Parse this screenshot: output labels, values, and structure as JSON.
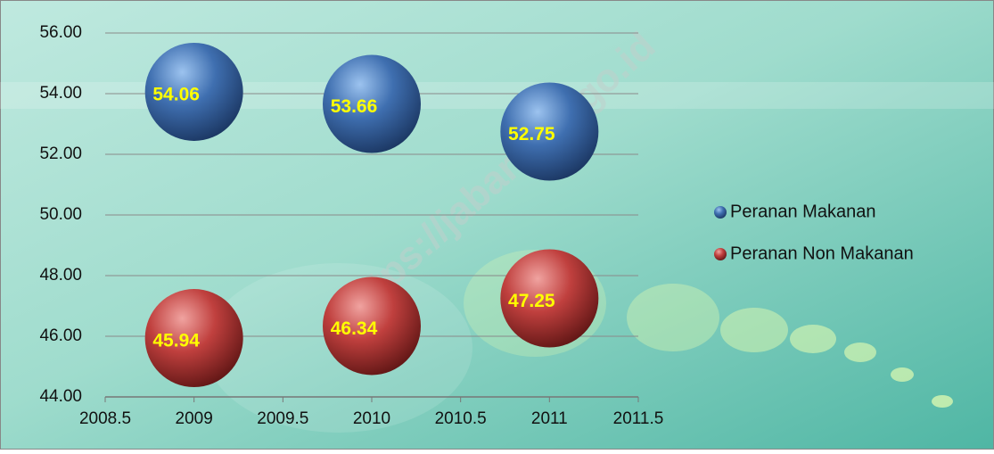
{
  "chart_data": {
    "type": "scatter",
    "x": [
      2009,
      2010,
      2011
    ],
    "series": [
      {
        "name": "Peranan Makanan",
        "color": "#3f6fb0",
        "values": [
          54.06,
          53.66,
          52.75
        ]
      },
      {
        "name": "Peranan Non Makanan",
        "color": "#c0403e",
        "values": [
          45.94,
          46.34,
          47.25
        ]
      }
    ],
    "xlim": [
      2008.5,
      2011.5
    ],
    "xticks": [
      2008.5,
      2009,
      2009.5,
      2010,
      2010.5,
      2011,
      2011.5
    ],
    "ylim": [
      44,
      56
    ],
    "yticks": [
      {
        "value": 44,
        "label": "44.00"
      },
      {
        "value": 46,
        "label": "46.00"
      },
      {
        "value": 48,
        "label": "48.00"
      },
      {
        "value": 50,
        "label": "50.00"
      },
      {
        "value": 52,
        "label": "52.00"
      },
      {
        "value": 54,
        "label": "54.00"
      },
      {
        "value": 56,
        "label": "56.00"
      }
    ],
    "grid": true,
    "legend": "right",
    "watermark": "https://jabar.bps.go.id"
  }
}
